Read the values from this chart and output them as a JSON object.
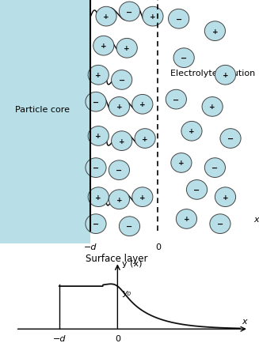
{
  "fig_width": 3.27,
  "fig_height": 4.35,
  "dpi": 100,
  "top_panel_bg": "#b8dfe8",
  "particle_core_label": "Particle core",
  "electrolyte_label": "Electrolyte solution",
  "surface_layer_label": "Surface layer",
  "x_label": "x",
  "y_label": "y (x)",
  "y0_label": "y₀",
  "neg_d_label": "−d",
  "zero_label": "0",
  "ion_color": "#b8dfe8",
  "ion_edge_color": "#444444",
  "curve_color": "#111111",
  "surface_ions": [
    [
      4.1,
      9.3,
      "+"
    ],
    [
      5.0,
      9.5,
      "-"
    ],
    [
      5.9,
      9.3,
      "+"
    ],
    [
      4.0,
      8.1,
      "+"
    ],
    [
      4.9,
      8.0,
      "+"
    ],
    [
      3.8,
      6.9,
      "+"
    ],
    [
      4.7,
      6.7,
      "-"
    ],
    [
      3.7,
      5.8,
      "-"
    ],
    [
      4.6,
      5.6,
      "+"
    ],
    [
      5.5,
      5.7,
      "+"
    ],
    [
      3.8,
      4.4,
      "+"
    ],
    [
      4.7,
      4.2,
      "+"
    ],
    [
      5.6,
      4.3,
      "+"
    ],
    [
      3.7,
      3.1,
      "-"
    ],
    [
      4.6,
      3.0,
      "-"
    ],
    [
      3.8,
      1.9,
      "+"
    ],
    [
      4.6,
      1.8,
      "+"
    ],
    [
      5.5,
      1.9,
      "+"
    ],
    [
      3.7,
      0.8,
      "-"
    ],
    [
      5.0,
      0.7,
      "-"
    ]
  ],
  "elec_ions": [
    [
      6.9,
      9.2,
      "-"
    ],
    [
      8.3,
      8.7,
      "+"
    ],
    [
      7.1,
      7.6,
      "-"
    ],
    [
      8.7,
      6.9,
      "+"
    ],
    [
      6.8,
      5.9,
      "-"
    ],
    [
      8.2,
      5.6,
      "+"
    ],
    [
      7.4,
      4.6,
      "+"
    ],
    [
      8.9,
      4.3,
      "-"
    ],
    [
      7.0,
      3.3,
      "+"
    ],
    [
      8.3,
      3.1,
      "-"
    ],
    [
      7.6,
      2.2,
      "-"
    ],
    [
      8.7,
      1.9,
      "+"
    ],
    [
      7.2,
      1.0,
      "+"
    ],
    [
      8.5,
      0.8,
      "-"
    ]
  ]
}
